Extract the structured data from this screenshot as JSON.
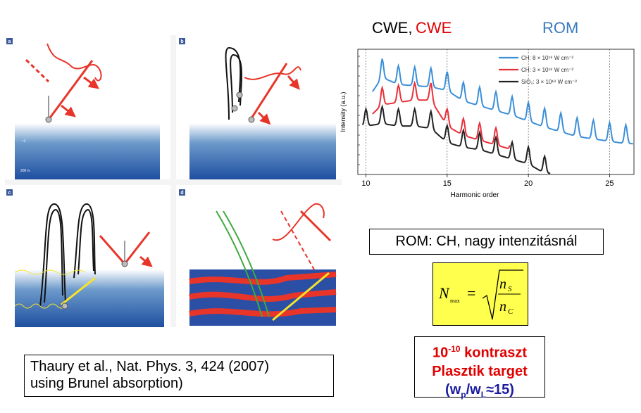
{
  "header": {
    "cwe_black": "CWE,",
    "cwe_red": "CWE",
    "rom": "ROM",
    "colors": {
      "black": "#000000",
      "red": "#e00000",
      "blue": "#3b7bbf"
    }
  },
  "panels": {
    "a": {
      "letter": "a",
      "label_small_1": "~λ",
      "label_small_2": "200 nₜ"
    },
    "b": {
      "letter": "b"
    },
    "c": {
      "letter": "c"
    },
    "d": {
      "letter": "d"
    }
  },
  "reference": {
    "line1": "Thaury et al., Nat. Phys. 3, 424 (2007)",
    "line2": "using Brunel absorption)"
  },
  "rom_note": "ROM: CH, nagy intenzitásnál",
  "formula": {
    "lhs": "N",
    "sub": "max",
    "num": "n",
    "num_sub": "S",
    "den": "n",
    "den_sub": "C"
  },
  "contrast": {
    "line1_base": "10",
    "line1_exp": "-10",
    "line1_rest": " kontraszt",
    "line2": "Plasztik target",
    "line3_open": "(w",
    "line3_p": "p",
    "line3_mid": "/w",
    "line3_L": "L",
    "line3_close": "≈15)"
  },
  "chart_data": {
    "type": "line",
    "xlabel": "Harmonic order",
    "ylabel": "Intensity (a.u.)",
    "xlim": [
      9.5,
      26.5
    ],
    "x_ticks": [
      "10",
      "15",
      "20",
      "25"
    ],
    "log_scale_y": true,
    "legend_position": "top-right",
    "series": [
      {
        "name": "CH: 8 × 10¹⁸ W cm⁻²",
        "color": "#3b8fd8",
        "peaks_x": [
          10,
          11,
          12,
          13,
          14,
          15,
          16,
          17,
          18,
          19,
          20,
          21,
          22,
          23,
          24,
          25,
          26
        ],
        "peaks_level": [
          0.72,
          0.92,
          0.86,
          0.85,
          0.84,
          0.81,
          0.72,
          0.68,
          0.64,
          0.6,
          0.55,
          0.5,
          0.46,
          0.42,
          0.4,
          0.38,
          0.36
        ],
        "x_range": [
          10.4,
          26.5
        ]
      },
      {
        "name": "CH: 3 × 10¹⁸ W cm⁻²",
        "color": "#e8303a",
        "peaks_x": [
          10,
          11,
          12,
          13,
          14,
          15,
          16,
          17,
          18,
          19
        ],
        "peaks_level": [
          0.55,
          0.68,
          0.7,
          0.72,
          0.72,
          0.5,
          0.42,
          0.38,
          0.34,
          0.3
        ],
        "x_range": [
          10.4,
          18.9
        ]
      },
      {
        "name": "SiO₂: 3 × 10¹⁸ W cm⁻²",
        "color": "#222222",
        "peaks_x": [
          10,
          11,
          12,
          13,
          14,
          15,
          16,
          17,
          18,
          19,
          20,
          21
        ],
        "peaks_level": [
          0.5,
          0.52,
          0.5,
          0.5,
          0.48,
          0.36,
          0.32,
          0.3,
          0.26,
          0.22,
          0.18,
          0.1
        ],
        "x_range": [
          9.8,
          21.4
        ]
      }
    ]
  }
}
